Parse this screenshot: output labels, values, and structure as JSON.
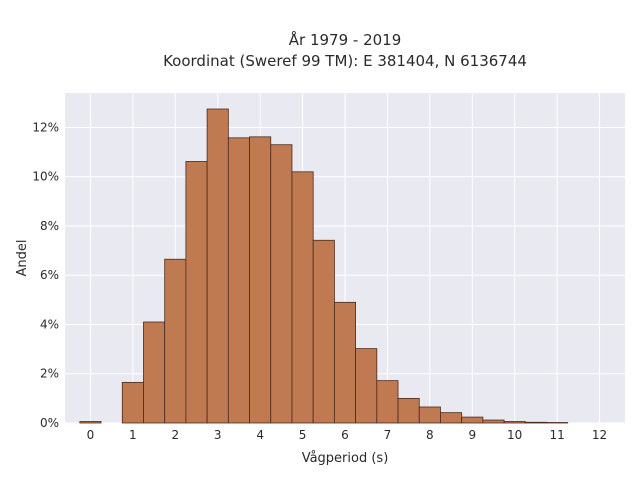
{
  "chart_data": {
    "type": "bar",
    "title_lines": [
      "År 1979 - 2019",
      "Koordinat (Sweref 99 TM): E 381404, N 6136744"
    ],
    "xlabel": "Vågperiod (s)",
    "ylabel": "Andel",
    "bin_width": 0.5,
    "bin_starts": [
      -0.25,
      0.75,
      1.25,
      1.75,
      2.25,
      2.75,
      3.25,
      3.75,
      4.25,
      4.75,
      5.25,
      5.75,
      6.25,
      6.75,
      7.25,
      7.75,
      8.25,
      8.75,
      9.25,
      9.75,
      10.25,
      10.75,
      11.25
    ],
    "values": [
      0.06,
      1.65,
      4.1,
      6.65,
      10.62,
      12.75,
      11.58,
      11.62,
      11.3,
      10.2,
      7.42,
      4.9,
      3.02,
      1.72,
      1.0,
      0.65,
      0.42,
      0.24,
      0.12,
      0.06,
      0.03,
      0.02,
      0.0
    ],
    "x_ticks": [
      "0",
      "1",
      "2",
      "3",
      "4",
      "5",
      "6",
      "7",
      "8",
      "9",
      "10",
      "11",
      "12"
    ],
    "x_tick_values": [
      0,
      1,
      2,
      3,
      4,
      5,
      6,
      7,
      8,
      9,
      10,
      11,
      12
    ],
    "y_ticks": [
      "0%",
      "2%",
      "4%",
      "6%",
      "8%",
      "10%",
      "12%"
    ],
    "y_tick_values": [
      0,
      2,
      4,
      6,
      8,
      10,
      12
    ],
    "xlim": [
      -0.6,
      12.6
    ],
    "ylim": [
      0,
      13.4
    ],
    "grid": true,
    "legend": "none",
    "colors": {
      "bar_fill": "#c07a52",
      "bar_edge": "#4a2a1a",
      "plot_background": "#e9e9f1",
      "grid": "#ffffff"
    }
  }
}
